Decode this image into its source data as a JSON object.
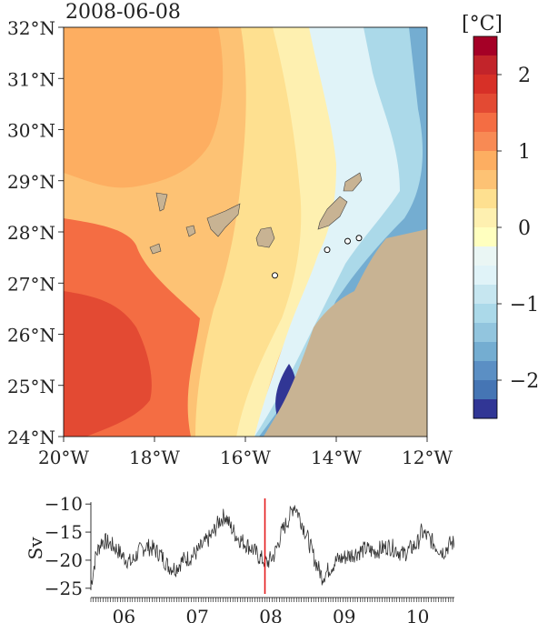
{
  "map": {
    "date_label": "2008-06-08",
    "lat_labels": [
      "32°N",
      "31°N",
      "30°N",
      "29°N",
      "28°N",
      "27°N",
      "26°N",
      "25°N",
      "24°N"
    ],
    "lon_labels": [
      "20°W",
      "18°W",
      "16°W",
      "14°W",
      "12°W"
    ],
    "colors": {
      "land": "#c8b393",
      "island": "#c8b393",
      "frame": "#000000"
    },
    "markers": [
      {
        "lon": -14.2,
        "lat": 27.65
      },
      {
        "lon": -13.75,
        "lat": 27.82
      },
      {
        "lon": -13.5,
        "lat": 27.88
      },
      {
        "lon": -15.35,
        "lat": 27.15
      }
    ]
  },
  "colorbar": {
    "unit_label": "[°C]",
    "tick_labels": [
      "2",
      "1",
      "0",
      "−1",
      "−2"
    ],
    "tick_values": [
      2,
      1,
      0,
      -1,
      -2
    ],
    "range": [
      -2.5,
      2.5
    ],
    "levels": 20,
    "colors_top_to_bottom": [
      "#a50026",
      "#c2242a",
      "#d73027",
      "#e34a33",
      "#f46d43",
      "#f88a54",
      "#fdae61",
      "#fdc274",
      "#fee090",
      "#fef0b0",
      "#ffffbf",
      "#eaf6f4",
      "#e0f3f8",
      "#c6e6f0",
      "#abd9e9",
      "#92c5de",
      "#74add1",
      "#5b8fc4",
      "#4575b4",
      "#313695"
    ]
  },
  "chart_data": {
    "type": "line",
    "ylabel": "Sv",
    "ylim": [
      -26,
      -9
    ],
    "yticks": [
      -10,
      -15,
      -20,
      -25
    ],
    "ytick_labels": [
      "−10",
      "−15",
      "−20",
      "−25"
    ],
    "xlim": [
      5.55,
      10.5
    ],
    "xticks": [
      6,
      7,
      8,
      9,
      10
    ],
    "xtick_labels": [
      "06",
      "07",
      "08",
      "09",
      "10"
    ],
    "marker_x": 7.92,
    "marker_color": "#e41a1c",
    "line_color": "#333333",
    "keypoints": [
      [
        5.55,
        -24.5
      ],
      [
        5.62,
        -19
      ],
      [
        5.7,
        -16.5
      ],
      [
        5.8,
        -17
      ],
      [
        5.9,
        -18
      ],
      [
        6.0,
        -19.5
      ],
      [
        6.1,
        -20.5
      ],
      [
        6.2,
        -18.5
      ],
      [
        6.3,
        -17.5
      ],
      [
        6.4,
        -18
      ],
      [
        6.5,
        -19
      ],
      [
        6.6,
        -21
      ],
      [
        6.7,
        -21.5
      ],
      [
        6.8,
        -20
      ],
      [
        6.9,
        -19.5
      ],
      [
        7.0,
        -18.5
      ],
      [
        7.1,
        -17
      ],
      [
        7.2,
        -15.5
      ],
      [
        7.3,
        -13
      ],
      [
        7.38,
        -12
      ],
      [
        7.45,
        -14
      ],
      [
        7.55,
        -16
      ],
      [
        7.65,
        -17
      ],
      [
        7.75,
        -18
      ],
      [
        7.85,
        -19.5
      ],
      [
        7.95,
        -20.5
      ],
      [
        8.05,
        -19
      ],
      [
        8.15,
        -15
      ],
      [
        8.25,
        -12.5
      ],
      [
        8.32,
        -10
      ],
      [
        8.4,
        -12.5
      ],
      [
        8.5,
        -16
      ],
      [
        8.6,
        -20
      ],
      [
        8.7,
        -23
      ],
      [
        8.8,
        -21.5
      ],
      [
        8.9,
        -20
      ],
      [
        9.0,
        -19.5
      ],
      [
        9.1,
        -19
      ],
      [
        9.2,
        -18.5
      ],
      [
        9.3,
        -18
      ],
      [
        9.4,
        -18.5
      ],
      [
        9.5,
        -18
      ],
      [
        9.6,
        -17.5
      ],
      [
        9.7,
        -18
      ],
      [
        9.8,
        -19
      ],
      [
        9.9,
        -18
      ],
      [
        10.0,
        -17
      ],
      [
        10.05,
        -15
      ],
      [
        10.15,
        -16
      ],
      [
        10.25,
        -17.5
      ],
      [
        10.35,
        -18.5
      ],
      [
        10.45,
        -17
      ],
      [
        10.5,
        -17
      ]
    ]
  }
}
